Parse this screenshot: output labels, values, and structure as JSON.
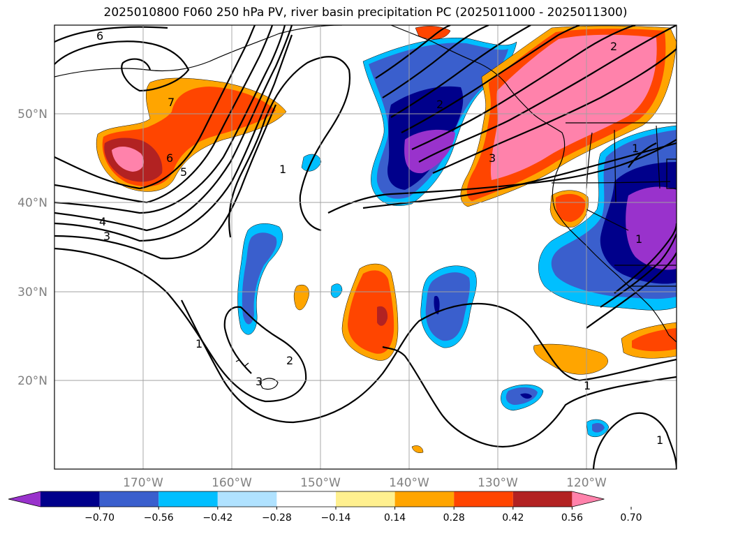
{
  "title": "2025010800 F060 250 hPa PV, river basin precipitation PC (2025011000 - 2025011300)",
  "lat_labels": [
    "50°N",
    "40°N",
    "30°N",
    "20°N"
  ],
  "lon_labels": [
    "170°W",
    "160°W",
    "150°W",
    "140°W",
    "130°W",
    "120°W"
  ],
  "contour_labels": [
    "6",
    "5",
    "6",
    "7",
    "4",
    "3",
    "1",
    "2",
    "3",
    "1",
    "2",
    "3",
    "1",
    "1",
    "1",
    "1",
    "2"
  ],
  "colorbar": {
    "colors": [
      "#9932cc",
      "#00008b",
      "#3a5fcd",
      "#00bfff",
      "#b0e2ff",
      "#ffffff",
      "#fff08f",
      "#ffa500",
      "#ff4500",
      "#b22222",
      "#ff82ab"
    ],
    "tick_labels": [
      "−0.70",
      "−0.56",
      "−0.42",
      "−0.28",
      "−0.14",
      "0.14",
      "0.28",
      "0.42",
      "0.56",
      "0.70"
    ]
  }
}
